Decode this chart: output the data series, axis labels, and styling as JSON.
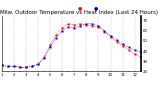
{
  "title": "Milw. Outdoor Temperature vs Heat Index (Last 24 Hours)",
  "bg_color": "#ffffff",
  "plot_bg": "#ffffff",
  "grid_color": "#bbbbbb",
  "temp_color": "#ff0000",
  "hi_color": "#0000cc",
  "ylim": [
    20,
    75
  ],
  "xlim": [
    0,
    23
  ],
  "xtick_labels": [
    "1",
    "",
    "2",
    "",
    "3",
    "",
    "4",
    "",
    "5",
    "",
    "6",
    "",
    "7",
    "",
    "8",
    "",
    "9",
    "",
    "10",
    "",
    "11",
    "",
    "12",
    "",
    "1"
  ],
  "temp_values": [
    26,
    25,
    25,
    24,
    24,
    25,
    27,
    34,
    46,
    56,
    63,
    67,
    66,
    67,
    66,
    65,
    64,
    59,
    54,
    49,
    45,
    41,
    37,
    34
  ],
  "hi_values": [
    26,
    25,
    25,
    24,
    24,
    25,
    27,
    33,
    44,
    53,
    60,
    64,
    63,
    65,
    67,
    67,
    65,
    60,
    55,
    51,
    47,
    44,
    41,
    39
  ],
  "ytick_values": [
    20,
    30,
    40,
    50,
    60,
    70
  ],
  "title_fontsize": 4.0,
  "tick_fontsize": 2.8,
  "legend_dot_red": [
    0.55,
    0.97
  ],
  "legend_dot_blue": [
    0.65,
    0.97
  ]
}
